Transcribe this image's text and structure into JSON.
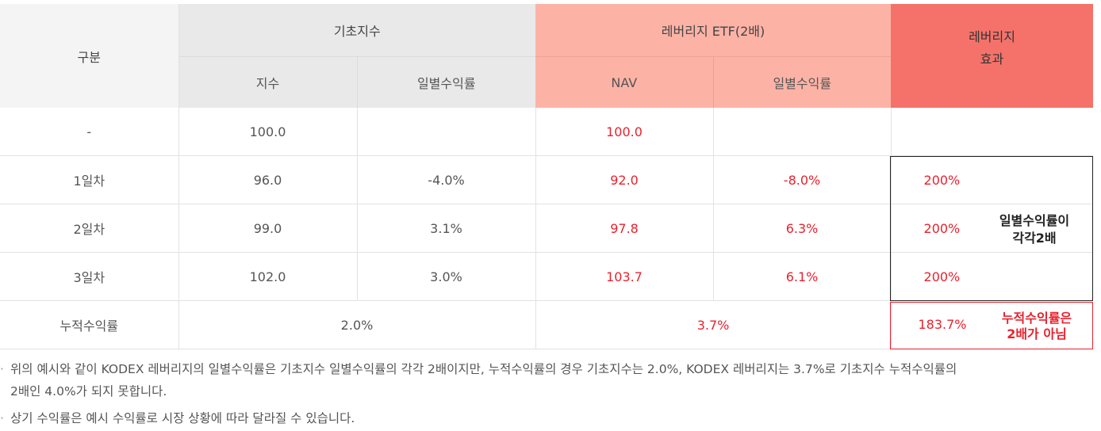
{
  "header": {
    "gubun": "구분",
    "base_index": "기초지수",
    "leverage_etf": "레버리지 ETF(2배)",
    "leverage_effect_line1": "레버리지",
    "leverage_effect_line2": "효과",
    "index_col": "지수",
    "base_daily_return": "일별수익률",
    "nav_col": "NAV",
    "etf_daily_return": "일별수익률"
  },
  "rows": [
    {
      "label": "-",
      "index": "100.0",
      "index_return": "",
      "nav": "100.0",
      "nav_return": "",
      "effect": ""
    },
    {
      "label": "1일차",
      "index": "96.0",
      "index_return": "-4.0%",
      "nav": "92.0",
      "nav_return": "-8.0%",
      "effect": "200%"
    },
    {
      "label": "2일차",
      "index": "99.0",
      "index_return": "3.1%",
      "nav": "97.8",
      "nav_return": "6.3%",
      "effect": "200%"
    },
    {
      "label": "3일차",
      "index": "102.0",
      "index_return": "3.0%",
      "nav": "103.7",
      "nav_return": "6.1%",
      "effect": "200%"
    }
  ],
  "effect_note_line1": "일별수익률이",
  "effect_note_line2": "각각2배",
  "cumulative": {
    "label": "누적수익률",
    "base": "2.0%",
    "etf": "3.7%",
    "effect": "183.7%",
    "note_line1": "누적수익률은",
    "note_line2": "2배가 아님"
  },
  "notes": [
    {
      "bullet": "·",
      "text_line1": "위의 예시와 같이 KODEX 레버리지의 일별수익률은 기초지수 일별수익률의 각각 2배이지만, 누적수익률의 경우 기초지수는 2.0%, KODEX 레버리지는 3.7%로 기초지수 누적수익률의",
      "text_line2": "2배인 4.0%가 되지 못합니다."
    },
    {
      "bullet": "·",
      "text_line1": "상기 수익률은 예시 수익률로 시장 상황에 따라 달라질 수 있습니다."
    }
  ],
  "colors": {
    "base_header_bg": "#e9e9e9",
    "etf_header_bg": "#fcb3a6",
    "effect_header_bg": "#f4726a",
    "accent_red": "#e8222e"
  }
}
